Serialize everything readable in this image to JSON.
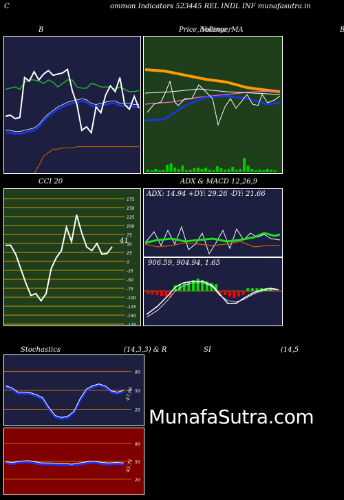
{
  "header": {
    "left_letter": "C",
    "title": "ommon  Indicators 523445 REL INDL INF munafasutra.in"
  },
  "panels": {
    "bb_title": "B",
    "price_title": "Price,  Volume,  MA",
    "price_overlap_text": "Bollinger",
    "right_edge_letter": "B",
    "cci_title": "CCI 20",
    "cci_value": "41",
    "adx_title": "ADX  & MACD 12,26,9",
    "adx_values": "ADX: 14.94  +DY: 29.26  -DY: 21.66",
    "macd_values": "906.59,  904.94,  1.65",
    "stoch_title": "Stochastics",
    "stoch_params": "(14,3,3) & R",
    "stoch_value": "47.96",
    "rsi_title": "SI",
    "rsi_params": "(14,5",
    "rsi_value": "45.71"
  },
  "watermark": "MunafaSutra.com",
  "colors": {
    "navy_bg": "#1c1f3f",
    "green_bg": "#1f3f1c",
    "dark_red_bg": "#800000",
    "grid_orange": "#cc6600",
    "line_white": "#ffffff",
    "line_blue": "#1a35ff",
    "line_green": "#22cc22",
    "volume_green": "#00cc00"
  },
  "chart_data": [
    {
      "type": "line",
      "name": "bollinger",
      "series": [
        {
          "name": "price",
          "values": [
            58,
            57,
            60,
            59,
            25,
            28,
            20,
            27,
            22,
            19,
            23,
            22,
            21,
            18,
            36,
            48,
            70,
            67,
            72,
            50,
            55,
            40,
            32,
            37,
            25,
            48,
            52,
            41,
            51
          ]
        },
        {
          "name": "upper",
          "values": [
            20,
            19,
            18,
            20,
            14,
            12,
            12,
            13,
            15,
            12,
            14,
            18,
            15,
            12,
            12,
            18,
            19,
            19,
            15,
            16,
            18,
            18,
            18,
            20,
            18,
            20,
            22,
            22,
            21
          ]
        },
        {
          "name": "middle",
          "values": [
            67,
            67,
            68,
            68,
            67,
            66,
            65,
            62,
            57,
            53,
            50,
            47,
            45,
            43,
            42,
            41,
            40,
            41,
            44,
            45,
            44,
            43,
            42,
            42,
            44,
            44,
            44,
            45,
            45
          ]
        },
        {
          "name": "lower",
          "values": [
            100,
            100,
            99,
            99,
            98,
            93,
            85,
            78,
            70,
            67,
            64,
            64,
            63,
            63,
            63,
            62,
            62,
            62,
            62,
            62,
            62,
            62,
            62,
            62,
            62,
            62,
            62,
            62,
            62
          ]
        }
      ]
    },
    {
      "type": "line",
      "name": "cci",
      "ylim": [
        -175,
        175
      ],
      "ticks": [
        175,
        150,
        125,
        100,
        75,
        50,
        25,
        0,
        -25,
        -50,
        -75,
        -100,
        -125,
        -150,
        -175
      ],
      "values": [
        45,
        45,
        20,
        -20,
        -60,
        -95,
        -90,
        -110,
        -90,
        -20,
        10,
        30,
        95,
        55,
        130,
        80,
        40,
        30,
        50,
        20,
        22,
        41
      ]
    },
    {
      "type": "line",
      "name": "stochastics",
      "ticks": [
        80,
        50,
        20
      ],
      "values": [
        55,
        52,
        45,
        45,
        44,
        41,
        36,
        20,
        8,
        5,
        7,
        15,
        35,
        50,
        55,
        58,
        55,
        47,
        45,
        48
      ]
    },
    {
      "type": "line",
      "name": "rsi",
      "ticks": [
        80,
        50,
        20
      ],
      "values": [
        47,
        46,
        48,
        49,
        47,
        45,
        45,
        44,
        44,
        43,
        45,
        47,
        48,
        46,
        45,
        46,
        45
      ]
    }
  ]
}
